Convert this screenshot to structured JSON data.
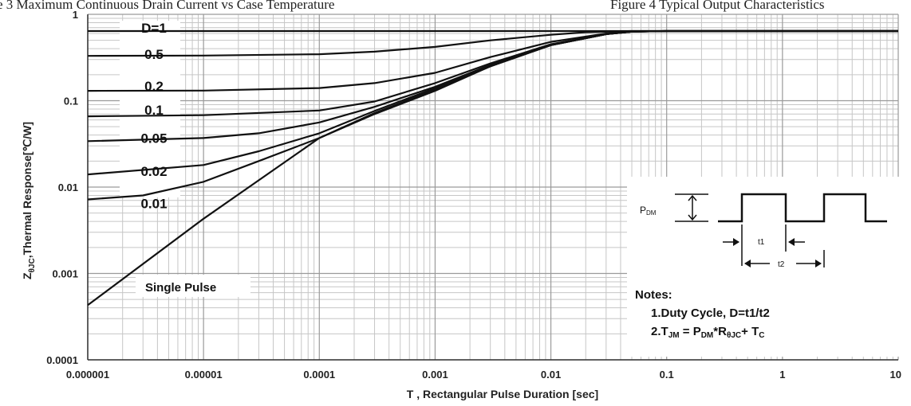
{
  "header": {
    "left_caption": "e 3 Maximum Continuous Drain Current vs Case Temperature",
    "right_caption": "Figure 4 Typical Output Characteristics"
  },
  "chart_data": {
    "type": "line",
    "title": "",
    "xlabel": "T , Rectangular Pulse Duration [sec]",
    "ylabel": {
      "main": "Z",
      "sub": "θJC",
      "rest": ",Thermal Response[℃/W]"
    },
    "x_scale": "log",
    "y_scale": "log",
    "xlim": [
      1e-06,
      10
    ],
    "ylim": [
      0.0001,
      1
    ],
    "x_ticks": [
      "0.000001",
      "0.00001",
      "0.0001",
      "0.001",
      "0.01",
      "0.1",
      "1",
      "10"
    ],
    "y_ticks": [
      "0.0001",
      "0.001",
      "0.01",
      "0.1",
      "1"
    ],
    "grid": true,
    "series": [
      {
        "name": "D=1",
        "x": [
          1e-06,
          1e-05,
          0.0001,
          0.001,
          0.01,
          0.1,
          1,
          10
        ],
        "y": [
          0.64,
          0.64,
          0.64,
          0.64,
          0.64,
          0.64,
          0.64,
          0.64
        ]
      },
      {
        "name": "0.5",
        "x": [
          1e-06,
          1e-05,
          0.0001,
          0.0003,
          0.001,
          0.003,
          0.01,
          0.02,
          0.05,
          0.1,
          1,
          10
        ],
        "y": [
          0.33,
          0.333,
          0.345,
          0.37,
          0.42,
          0.5,
          0.58,
          0.62,
          0.64,
          0.64,
          0.64,
          0.64
        ]
      },
      {
        "name": "0.2",
        "x": [
          1e-06,
          1e-05,
          0.0001,
          0.0003,
          0.001,
          0.003,
          0.01,
          0.03,
          0.05,
          0.1,
          1,
          10
        ],
        "y": [
          0.13,
          0.131,
          0.14,
          0.16,
          0.21,
          0.32,
          0.48,
          0.6,
          0.635,
          0.64,
          0.64,
          0.64
        ]
      },
      {
        "name": "0.1",
        "x": [
          1e-06,
          1e-05,
          0.0001,
          0.0003,
          0.001,
          0.003,
          0.01,
          0.03,
          0.05,
          0.1,
          1,
          10
        ],
        "y": [
          0.066,
          0.068,
          0.077,
          0.098,
          0.16,
          0.27,
          0.45,
          0.59,
          0.63,
          0.64,
          0.64,
          0.64
        ]
      },
      {
        "name": "0.05",
        "x": [
          1e-06,
          1e-05,
          3e-05,
          0.0001,
          0.0003,
          0.001,
          0.003,
          0.01,
          0.03,
          0.05,
          0.1,
          1,
          10
        ],
        "y": [
          0.034,
          0.037,
          0.042,
          0.056,
          0.085,
          0.145,
          0.26,
          0.44,
          0.59,
          0.63,
          0.64,
          0.64,
          0.64
        ]
      },
      {
        "name": "0.02",
        "x": [
          1e-06,
          1e-05,
          3e-05,
          0.0001,
          0.0003,
          0.001,
          0.003,
          0.01,
          0.03,
          0.05,
          0.1,
          1,
          10
        ],
        "y": [
          0.014,
          0.018,
          0.026,
          0.042,
          0.076,
          0.14,
          0.255,
          0.44,
          0.59,
          0.63,
          0.64,
          0.64,
          0.64
        ]
      },
      {
        "name": "0.01",
        "x": [
          1e-06,
          3e-06,
          1e-05,
          3e-05,
          0.0001,
          0.0003,
          0.001,
          0.003,
          0.01,
          0.03,
          0.05,
          0.1,
          1,
          10
        ],
        "y": [
          0.0072,
          0.008,
          0.0115,
          0.02,
          0.037,
          0.072,
          0.135,
          0.25,
          0.44,
          0.59,
          0.63,
          0.64,
          0.64,
          0.64
        ]
      },
      {
        "name": "Single Pulse",
        "x": [
          1e-06,
          1e-05,
          0.0001,
          0.0003,
          0.001,
          0.003,
          0.01,
          0.03,
          0.05,
          0.1,
          1,
          10
        ],
        "y": [
          0.00043,
          0.0043,
          0.037,
          0.07,
          0.13,
          0.25,
          0.44,
          0.59,
          0.63,
          0.64,
          0.64,
          0.64
        ]
      }
    ],
    "labels": [
      "D=1",
      "0.5",
      "0.2",
      "0.1",
      "0.05",
      "0.02",
      "0.01"
    ],
    "annotation": "Single Pulse",
    "inset": {
      "pdm_main": "P",
      "pdm_sub": "DM",
      "t1": "t1",
      "t2": "t2"
    },
    "notes": {
      "heading": "Notes:",
      "line1": "1.Duty  Cycle, D=t1/t2",
      "line2_t": "2.T",
      "line2_t_sub": "JM",
      "line2_eq": " = P",
      "line2_p_sub": "DM",
      "line2_r": "*R",
      "line2_r_sub": "θJC",
      "line2_plus": "+ T",
      "line2_c_sub": "C"
    }
  }
}
